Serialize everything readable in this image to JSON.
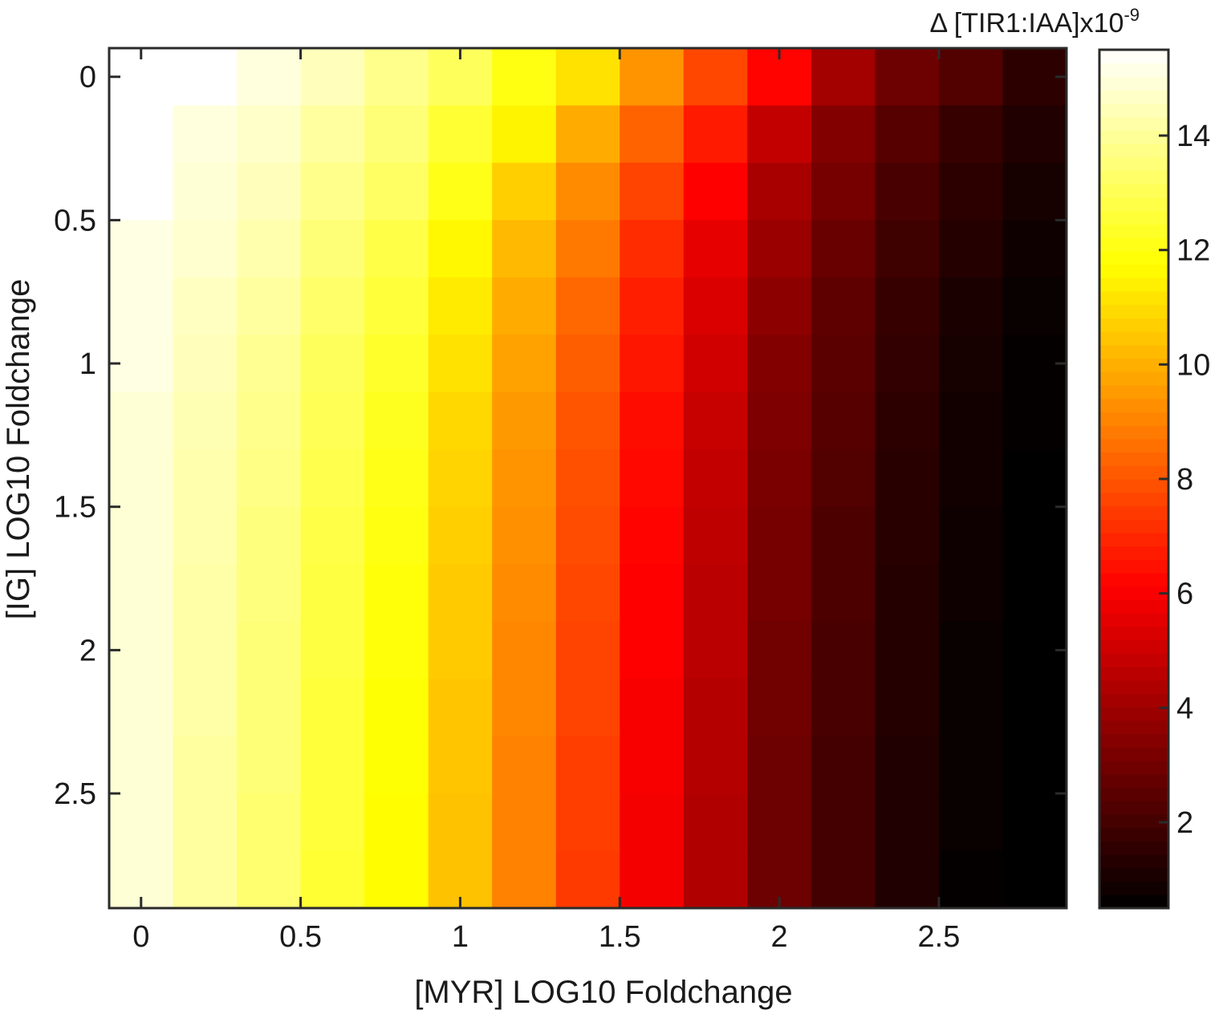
{
  "chart_data": {
    "type": "heatmap",
    "title": "",
    "xlabel": "[MYR] LOG10 Foldchange",
    "ylabel": "[IG] LOG10 Foldchange",
    "colorbar_title": "Δ [TIR1:IAA]x10",
    "colorbar_title_exponent": "-9",
    "colormap": "hot",
    "x": [
      0,
      0.2,
      0.4,
      0.6,
      0.8,
      1.0,
      1.2,
      1.4,
      1.6,
      1.8,
      2.0,
      2.2,
      2.4,
      2.6,
      2.8
    ],
    "y": [
      0,
      0.2,
      0.4,
      0.6,
      0.8,
      1.0,
      1.2,
      1.4,
      1.6,
      1.8,
      2.0,
      2.2,
      2.4,
      2.6,
      2.8
    ],
    "xlim": [
      -0.1,
      2.9
    ],
    "ylim": [
      -0.1,
      2.9
    ],
    "y_reversed": true,
    "x_ticks": [
      0,
      0.5,
      1,
      1.5,
      2,
      2.5
    ],
    "x_tick_labels": [
      "0",
      "0.5",
      "1",
      "1.5",
      "2",
      "2.5"
    ],
    "y_ticks": [
      0,
      0.5,
      1,
      1.5,
      2,
      2.5
    ],
    "y_tick_labels": [
      "0",
      "0.5",
      "1",
      "1.5",
      "2",
      "2.5"
    ],
    "clim": [
      0.5,
      15.5
    ],
    "colorbar_ticks": [
      2,
      4,
      6,
      8,
      10,
      12,
      14
    ],
    "colorbar_tick_labels": [
      "2",
      "4",
      "6",
      "8",
      "10",
      "12",
      "14"
    ],
    "z": [
      [
        15.5,
        15.5,
        15.0,
        14.5,
        13.8,
        13.1,
        12.0,
        11.1,
        9.4,
        7.7,
        6.2,
        4.1,
        2.9,
        2.3,
        1.5
      ],
      [
        15.5,
        15.0,
        14.7,
        14.1,
        13.5,
        12.5,
        11.5,
        9.9,
        8.3,
        6.7,
        4.8,
        3.4,
        2.4,
        1.7,
        1.2
      ],
      [
        15.5,
        14.9,
        14.5,
        13.8,
        13.2,
        12.1,
        10.7,
        9.2,
        7.6,
        6.1,
        4.2,
        3.1,
        2.1,
        1.5,
        1.0
      ],
      [
        15.1,
        14.8,
        14.3,
        13.5,
        12.8,
        11.6,
        10.2,
        8.8,
        7.1,
        5.6,
        3.9,
        2.8,
        1.9,
        1.3,
        0.8
      ],
      [
        15.1,
        14.6,
        14.1,
        13.3,
        12.6,
        11.3,
        9.9,
        8.4,
        6.8,
        5.3,
        3.6,
        2.6,
        1.7,
        1.1,
        0.7
      ],
      [
        15.1,
        14.5,
        13.9,
        13.1,
        12.4,
        11.1,
        9.7,
        8.2,
        6.6,
        5.1,
        3.4,
        2.5,
        1.6,
        1.0,
        0.6
      ],
      [
        14.9,
        14.4,
        13.8,
        13.0,
        12.2,
        10.9,
        9.5,
        8.0,
        6.4,
        4.9,
        3.3,
        2.4,
        1.5,
        0.9,
        0.6
      ],
      [
        14.9,
        14.3,
        13.7,
        12.9,
        12.1,
        10.8,
        9.4,
        7.9,
        6.3,
        4.8,
        3.2,
        2.3,
        1.4,
        0.9,
        0.5
      ],
      [
        14.9,
        14.3,
        13.6,
        12.8,
        12.0,
        10.7,
        9.3,
        7.8,
        6.2,
        4.7,
        3.1,
        2.2,
        1.4,
        0.8,
        0.5
      ],
      [
        14.9,
        14.2,
        13.6,
        12.7,
        11.9,
        10.6,
        9.2,
        7.7,
        6.1,
        4.6,
        3.1,
        2.2,
        1.3,
        0.8,
        0.5
      ],
      [
        14.9,
        14.2,
        13.5,
        12.7,
        11.9,
        10.6,
        9.1,
        7.6,
        6.1,
        4.6,
        3.0,
        2.1,
        1.3,
        0.7,
        0.5
      ],
      [
        14.9,
        14.2,
        13.5,
        12.6,
        11.8,
        10.5,
        9.1,
        7.6,
        6.0,
        4.5,
        3.0,
        2.1,
        1.3,
        0.7,
        0.5
      ],
      [
        14.9,
        14.1,
        13.5,
        12.6,
        11.8,
        10.5,
        9.0,
        7.5,
        6.0,
        4.5,
        2.9,
        2.0,
        1.2,
        0.7,
        0.5
      ],
      [
        14.9,
        14.1,
        13.4,
        12.6,
        11.7,
        10.4,
        9.0,
        7.5,
        5.9,
        4.4,
        2.9,
        2.0,
        1.2,
        0.7,
        0.5
      ],
      [
        14.9,
        14.1,
        13.4,
        12.5,
        11.7,
        10.4,
        9.0,
        7.4,
        5.9,
        4.4,
        2.9,
        2.0,
        1.2,
        0.6,
        0.5
      ]
    ],
    "grid": false,
    "legend": "none"
  }
}
